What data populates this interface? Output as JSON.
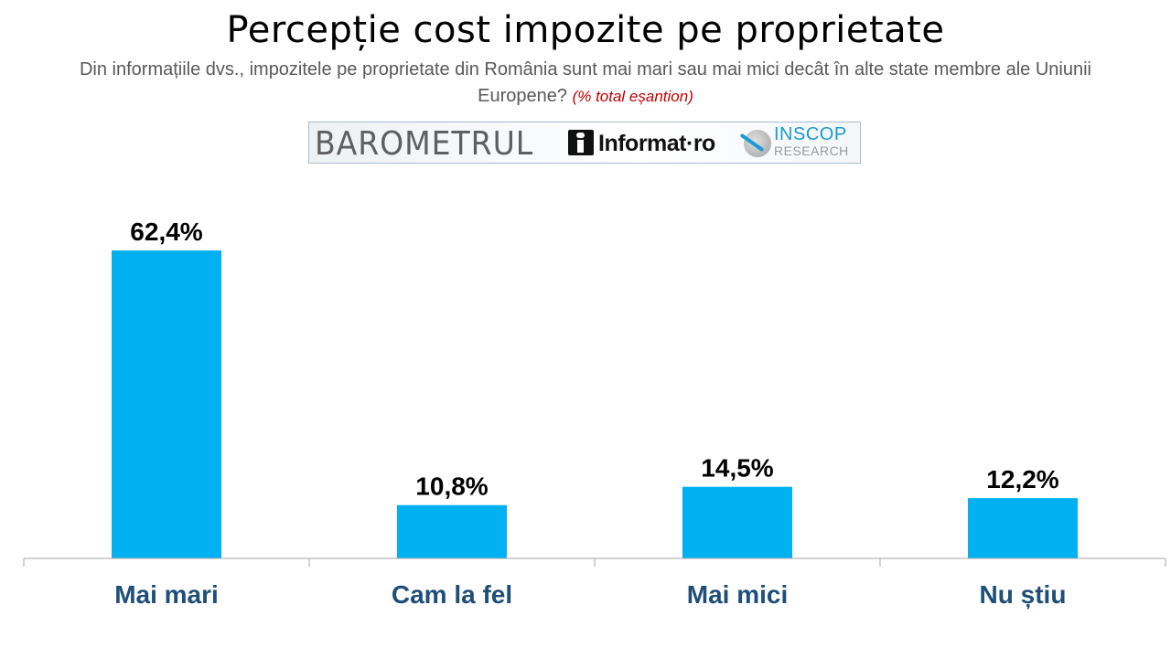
{
  "header": {
    "title": "Percepție cost impozite pe proprietate",
    "subtitle": "Din informațiile dvs., impozitele pe proprietate din România sunt mai mari sau mai mici decât în alte state membre ale Uniunii Europene?",
    "note": "(% total eșantion)"
  },
  "logo": {
    "barometrul": "BAROMETRUL",
    "informat": "Informat·ro",
    "inscop": "INSCOP",
    "research": "RESEARCH"
  },
  "colors": {
    "bar": "#00b0f0",
    "category_label": "#1f4e79",
    "value_label": "#000000",
    "axis": "#a6a6a6"
  },
  "chart_data": {
    "type": "bar",
    "categories": [
      "Mai mari",
      "Cam la fel",
      "Mai mici",
      "Nu știu"
    ],
    "values": [
      62.4,
      10.8,
      14.5,
      12.2
    ],
    "value_labels": [
      "62,4%",
      "10,8%",
      "14,5%",
      "12,2%"
    ],
    "ylim": [
      0,
      70
    ],
    "grid": false,
    "legend": "none"
  }
}
